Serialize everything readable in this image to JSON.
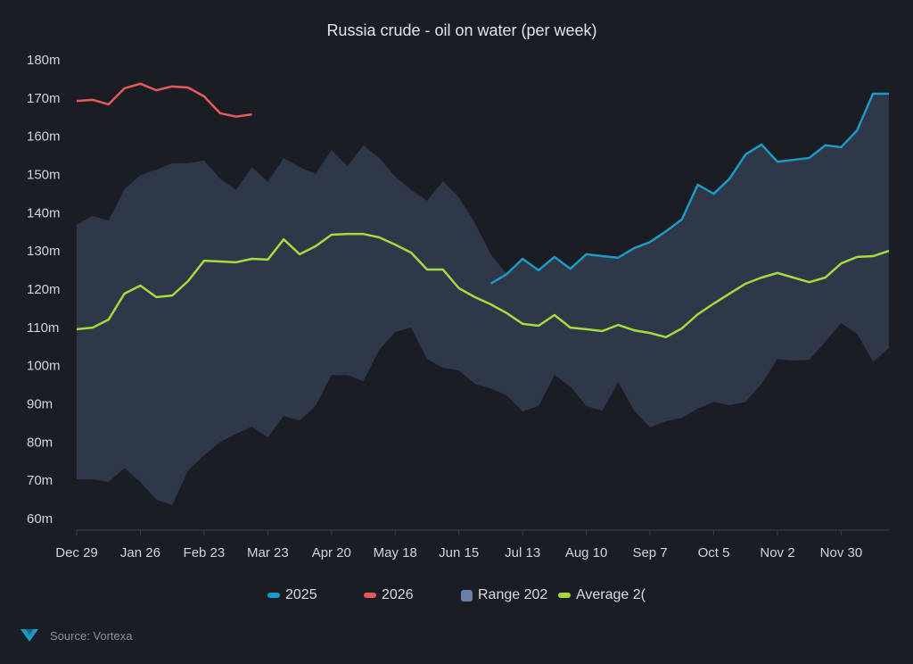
{
  "chart_data": {
    "type": "line",
    "title": "Russia crude - oil on water (per week)",
    "xlabel": "",
    "ylabel": "",
    "ylim": [
      60,
      180
    ],
    "yticks": [
      "60m",
      "70m",
      "80m",
      "90m",
      "100m",
      "110m",
      "120m",
      "130m",
      "140m",
      "150m",
      "160m",
      "170m",
      "180m"
    ],
    "ytick_values": [
      60,
      70,
      80,
      90,
      100,
      110,
      120,
      130,
      140,
      150,
      160,
      170,
      180
    ],
    "xticks": [
      "Dec 29",
      "Jan 26",
      "Feb 23",
      "Mar 23",
      "Apr 20",
      "May 18",
      "Jun 15",
      "Jul 13",
      "Aug 10",
      "Sep 7",
      "Oct 5",
      "Nov 2",
      "Nov 30"
    ],
    "xtick_weeks": [
      0,
      4,
      8,
      12,
      16,
      20,
      24,
      28,
      32,
      36,
      40,
      44,
      48
    ],
    "num_weeks": 52,
    "grid": false,
    "legend_position": "bottom",
    "series": [
      {
        "name": "Range 202",
        "kind": "range",
        "color": "#2f3849",
        "legend_color": "#6a7fa8",
        "start_week": 0,
        "upper": [
          136.6,
          138.9,
          137.7,
          145.9,
          149.6,
          151,
          152.7,
          152.7,
          153.4,
          148.7,
          145.7,
          151.7,
          147.8,
          154.1,
          151.7,
          149.9,
          156.2,
          151.9,
          157.4,
          154.1,
          149.2,
          145.7,
          142.9,
          148,
          143.8,
          137,
          128.9,
          123.7,
          127.7,
          124.7,
          128.2,
          125.1,
          128.9,
          128.4,
          128,
          130.5,
          132.1,
          134.9,
          138,
          147.1,
          144.7,
          148.7,
          155,
          157.6,
          153.1,
          153.6,
          154.1,
          157.4,
          156.9,
          161.3,
          170.9,
          170.9
        ],
        "lower": [
          70,
          70,
          69.3,
          73,
          69.3,
          64.7,
          63.3,
          72.4,
          76.3,
          79.8,
          81.9,
          83.8,
          81,
          86.6,
          85.4,
          89.2,
          97.3,
          97.3,
          95.7,
          103.9,
          108.6,
          109.7,
          101.5,
          99.2,
          98.5,
          95,
          93.8,
          92,
          87.8,
          89.2,
          97.3,
          94.3,
          89.2,
          88,
          95.5,
          88,
          83.6,
          85.2,
          86.1,
          88.5,
          90.3,
          89.4,
          90.3,
          95,
          101.5,
          101.1,
          101.3,
          106,
          110.9,
          108.1,
          100.8,
          104.3
        ]
      },
      {
        "name": "Average 2(",
        "kind": "line",
        "color": "#a6d93c",
        "start_week": 0,
        "values": [
          109.3,
          109.7,
          111.8,
          118.6,
          120.7,
          117.7,
          118.1,
          121.9,
          127.2,
          127,
          126.8,
          127.7,
          127.5,
          132.8,
          128.9,
          131,
          134,
          134.2,
          134.2,
          133.3,
          131.4,
          129.3,
          124.9,
          124.9,
          120,
          117.7,
          115.8,
          113.5,
          110.7,
          110.2,
          113,
          109.7,
          109.3,
          108.8,
          110.4,
          109,
          108.3,
          107.2,
          109.5,
          113.2,
          116,
          118.6,
          121.2,
          122.8,
          124,
          122.8,
          121.6,
          122.8,
          126.5,
          128.2,
          128.4,
          129.8
        ]
      },
      {
        "name": "2025",
        "kind": "line",
        "color": "#1a9ac4",
        "start_week": 26,
        "values": [
          121.2,
          123.7,
          127.7,
          124.7,
          128.2,
          125.1,
          128.9,
          128.4,
          128,
          130.5,
          132.1,
          134.9,
          138,
          147.1,
          144.7,
          148.7,
          155,
          157.6,
          153.1,
          153.6,
          154.1,
          157.4,
          156.9,
          161.3,
          170.9,
          170.9
        ]
      },
      {
        "name": "2026",
        "kind": "line",
        "color": "#e85a5a",
        "start_week": 0,
        "values": [
          169,
          169.3,
          168.1,
          172.3,
          173.5,
          171.8,
          172.8,
          172.5,
          170.2,
          165.8,
          164.9,
          165.5
        ]
      }
    ]
  },
  "legend": [
    {
      "label": "2025",
      "color": "#1a9ac4",
      "shape": "line"
    },
    {
      "label": "2026",
      "color": "#e85a5a",
      "shape": "line"
    },
    {
      "label": "Range 202",
      "color": "#6a7fa8",
      "shape": "box"
    },
    {
      "label": "Average 2(",
      "color": "#a6d93c",
      "shape": "line"
    }
  ],
  "source": {
    "label": "Source: Vortexa",
    "logo_text": "Vortexa"
  }
}
